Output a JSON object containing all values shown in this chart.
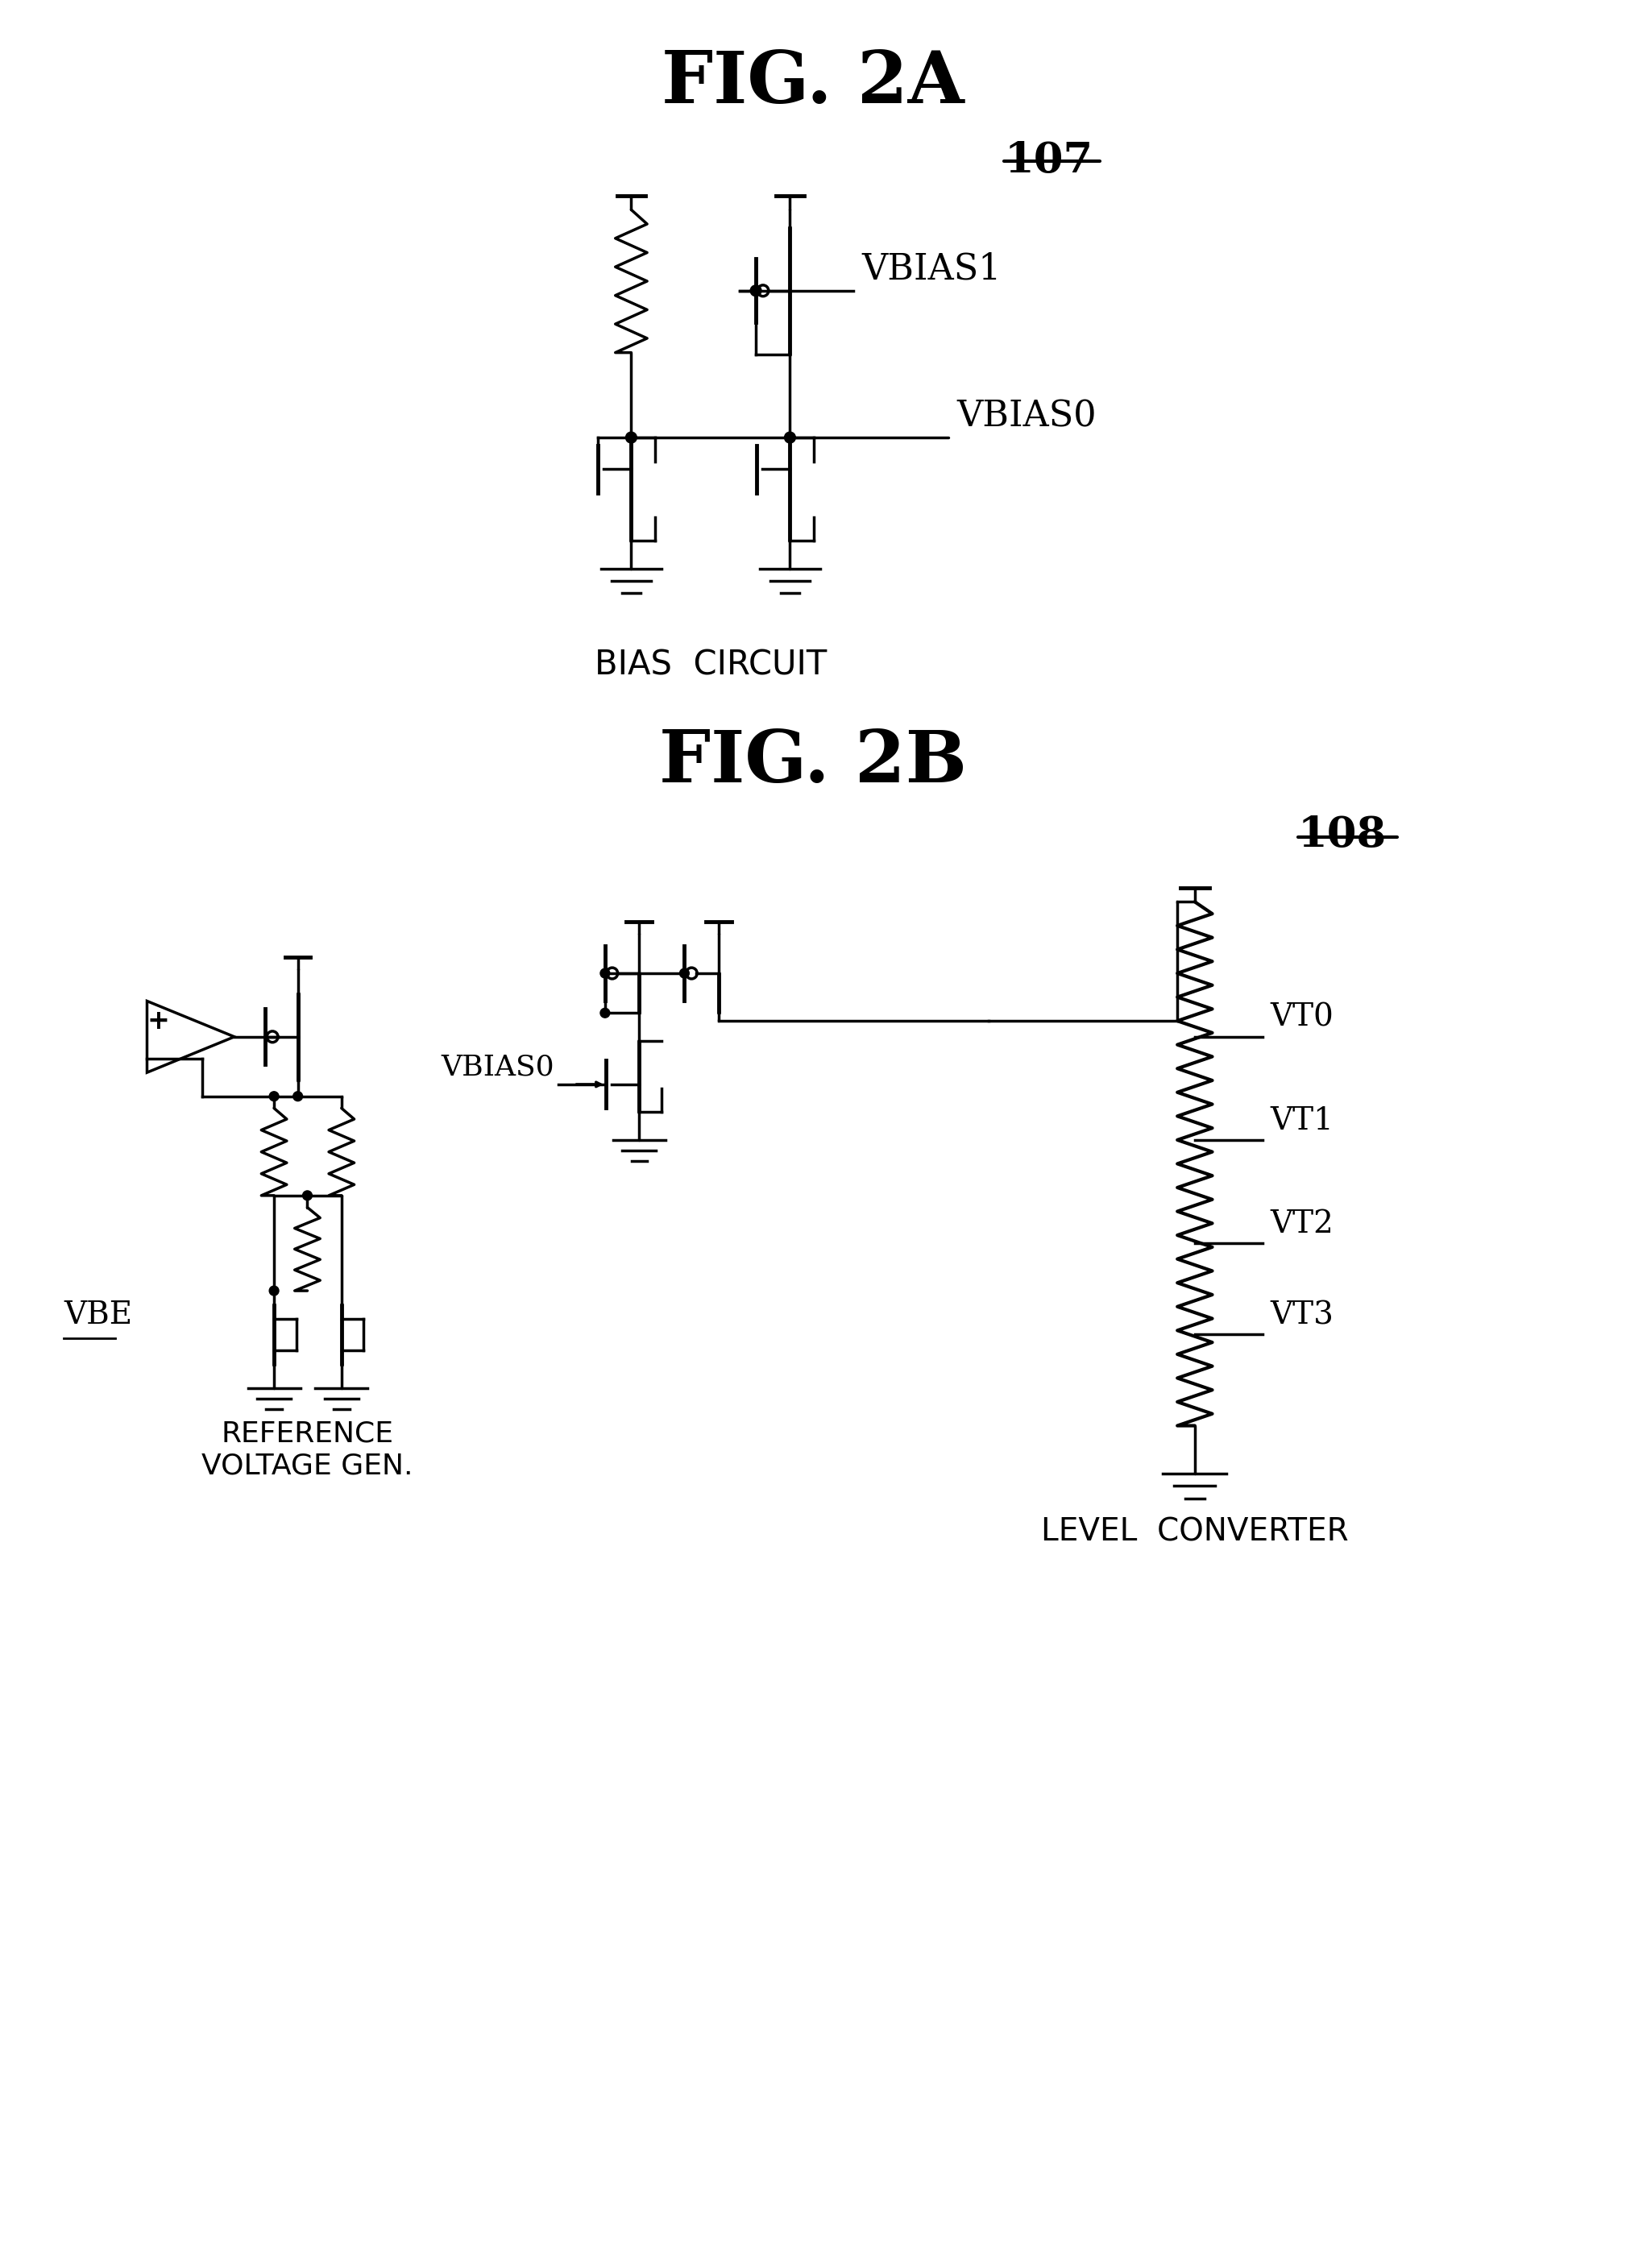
{
  "fig2a_title": "FIG. 2A",
  "fig2b_title": "FIG. 2B",
  "label_107": "107",
  "label_108": "108",
  "bias_circuit_label": "BIAS  CIRCUIT",
  "ref_volt_label": "REFERENCE\nVOLTAGE GEN.",
  "level_conv_label": "LEVEL  CONVERTER",
  "vbias1_label": "VBIAS1",
  "vbias0_label": "VBIAS0",
  "vbias0_b_label": "VBIAS0",
  "vbe_label": "VBE",
  "vt0_label": "VT0",
  "vt1_label": "VT1",
  "vt2_label": "VT2",
  "vt3_label": "VT3",
  "bg_color": "#ffffff",
  "line_color": "#000000",
  "lw": 2.5
}
